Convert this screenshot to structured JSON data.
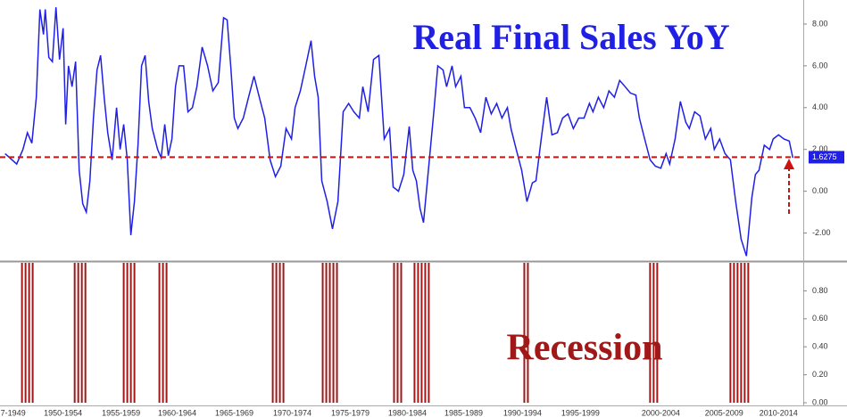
{
  "chart_data": [
    {
      "type": "line",
      "title": "Real Final Sales YoY",
      "x": [
        1947.44,
        1948.45,
        1948.99,
        1949.38,
        1949.77,
        1950.16,
        1950.47,
        1950.78,
        1950.93,
        1951.24,
        1951.55,
        1951.86,
        1952.17,
        1952.48,
        1952.71,
        1952.95,
        1953.26,
        1953.57,
        1953.88,
        1954.19,
        1954.5,
        1954.81,
        1955.12,
        1955.43,
        1955.74,
        1956.05,
        1956.36,
        1956.74,
        1957.13,
        1957.44,
        1957.75,
        1958.06,
        1958.37,
        1958.68,
        1958.99,
        1959.3,
        1959.61,
        1959.92,
        1960.23,
        1960.7,
        1961.01,
        1961.32,
        1961.63,
        1961.94,
        1962.25,
        1962.56,
        1962.95,
        1963.33,
        1963.72,
        1964.11,
        1964.57,
        1965.04,
        1965.5,
        1965.97,
        1966.43,
        1966.74,
        1967.05,
        1967.36,
        1967.67,
        1968.14,
        1968.6,
        1969.07,
        1969.53,
        1970.0,
        1970.47,
        1970.93,
        1971.4,
        1971.86,
        1972.33,
        1972.64,
        1973.1,
        1973.57,
        1974.03,
        1974.34,
        1974.65,
        1974.96,
        1975.43,
        1975.89,
        1976.36,
        1976.82,
        1977.29,
        1977.75,
        1978.22,
        1978.53,
        1978.99,
        1979.46,
        1979.92,
        1980.39,
        1980.85,
        1981.16,
        1981.63,
        1982.09,
        1982.56,
        1982.87,
        1983.18,
        1983.49,
        1983.8,
        1984.26,
        1984.73,
        1985.04,
        1985.5,
        1985.81,
        1986.28,
        1986.59,
        1987.05,
        1987.36,
        1987.83,
        1988.29,
        1988.76,
        1989.22,
        1989.69,
        1990.16,
        1990.62,
        1991.09,
        1991.4,
        1991.86,
        1992.33,
        1992.79,
        1993.26,
        1993.57,
        1994.03,
        1994.5,
        1994.96,
        1995.43,
        1995.89,
        1996.36,
        1996.82,
        1997.29,
        1997.75,
        1998.22,
        1998.53,
        1998.99,
        1999.46,
        1999.92,
        2000.39,
        2000.85,
        2001.32,
        2001.78,
        2002.25,
        2002.56,
        2003.02,
        2003.49,
        2003.95,
        2004.42,
        2004.88,
        2005.19,
        2005.66,
        2006.12,
        2006.59,
        2006.9,
        2007.36,
        2007.83,
        2008.29,
        2008.76,
        2009.07,
        2009.53,
        2010.0,
        2010.47,
        2010.93,
        2011.4,
        2011.86,
        2012.33,
        2012.64,
        2012.95,
        2013.41,
        2013.88,
        2014.19,
        2014.65,
        2015.12,
        2015.58,
        2015.89
      ],
      "series": [
        {
          "color": "#1f1fe6",
          "values": [
            1.8,
            1.3,
            2.0,
            2.8,
            2.3,
            4.5,
            8.7,
            7.5,
            8.7,
            6.4,
            6.2,
            8.8,
            6.3,
            7.8,
            3.2,
            6.0,
            5.0,
            6.2,
            1.0,
            -0.6,
            -1.0,
            0.5,
            3.5,
            5.8,
            6.5,
            4.5,
            2.8,
            1.5,
            4.0,
            2.0,
            3.2,
            1.5,
            -2.1,
            -0.5,
            2.2,
            6.0,
            6.5,
            4.3,
            3.0,
            2.0,
            1.6,
            3.2,
            1.7,
            2.5,
            5.0,
            6.0,
            6.0,
            3.8,
            4.0,
            5.0,
            6.9,
            6.0,
            4.8,
            5.2,
            8.3,
            8.2,
            6.0,
            3.5,
            3.0,
            3.5,
            4.5,
            5.5,
            4.5,
            3.5,
            1.5,
            0.7,
            1.2,
            3.0,
            2.5,
            4.0,
            4.8,
            6.0,
            7.2,
            5.5,
            4.5,
            0.5,
            -0.5,
            -1.8,
            -0.5,
            3.8,
            4.2,
            3.8,
            3.5,
            5.0,
            3.8,
            6.3,
            6.5,
            2.5,
            3.0,
            0.2,
            0.0,
            0.8,
            3.1,
            1.0,
            0.5,
            -0.8,
            -1.5,
            1.2,
            4.0,
            6.0,
            5.8,
            5.0,
            6.0,
            5.0,
            5.5,
            4.0,
            4.0,
            3.5,
            2.8,
            4.5,
            3.7,
            4.2,
            3.5,
            4.0,
            3.0,
            2.0,
            1.0,
            -0.5,
            0.4,
            0.5,
            2.5,
            4.5,
            2.7,
            2.8,
            3.5,
            3.7,
            3.0,
            3.5,
            3.5,
            4.2,
            3.8,
            4.5,
            4.0,
            4.8,
            4.5,
            5.3,
            5.0,
            4.7,
            4.6,
            3.5,
            2.5,
            1.5,
            1.2,
            1.1,
            1.8,
            1.3,
            2.5,
            4.3,
            3.3,
            3.0,
            3.8,
            3.6,
            2.5,
            3.0,
            2.0,
            2.5,
            1.8,
            1.5,
            -0.5,
            -2.3,
            -3.1,
            -0.3,
            0.8,
            1.0,
            2.2,
            2.0,
            2.5,
            2.7,
            2.5,
            2.4,
            1.6
          ]
        }
      ],
      "xlim": [
        1947,
        2016.8
      ],
      "ylim": [
        -3.3,
        9.15
      ],
      "yticks": [
        {
          "value": -2,
          "label": "-2.00"
        },
        {
          "value": 0,
          "label": "0.00"
        },
        {
          "value": 2,
          "label": "2.00"
        },
        {
          "value": 4,
          "label": "4.00"
        },
        {
          "value": 6,
          "label": "6.00"
        },
        {
          "value": 8,
          "label": "8.00"
        }
      ],
      "hline": 1.6275,
      "hline_color": "#cc1111"
    },
    {
      "type": "bar",
      "title": "Recession",
      "x": [
        1948.91,
        1949.22,
        1949.53,
        1949.84,
        1953.49,
        1953.8,
        1954.11,
        1954.42,
        1957.75,
        1958.06,
        1958.37,
        1958.68,
        1960.85,
        1961.16,
        1961.47,
        1970.7,
        1971.01,
        1971.32,
        1971.63,
        1975.04,
        1975.35,
        1975.66,
        1975.97,
        1976.28,
        1981.24,
        1981.55,
        1981.86,
        1983.02,
        1983.33,
        1983.64,
        1983.95,
        1984.26,
        1992.56,
        1992.87,
        2003.49,
        2003.8,
        2004.11,
        2010.47,
        2010.78,
        2011.09,
        2011.4,
        2011.71,
        2012.02
      ],
      "values": [
        1,
        1,
        1,
        1,
        1,
        1,
        1,
        1,
        1,
        1,
        1,
        1,
        1,
        1,
        1,
        1,
        1,
        1,
        1,
        1,
        1,
        1,
        1,
        1,
        1,
        1,
        1,
        1,
        1,
        1,
        1,
        1,
        1,
        1,
        1,
        1,
        1,
        1,
        1,
        1,
        1,
        1,
        1
      ],
      "color": "#a01818",
      "xlim": [
        1947,
        2016.8
      ],
      "ylim": [
        0,
        1
      ],
      "yticks": [
        {
          "value": 0,
          "label": "0.00"
        },
        {
          "value": 0.2,
          "label": "0.20"
        },
        {
          "value": 0.4,
          "label": "0.40"
        },
        {
          "value": 0.6,
          "label": "0.60"
        },
        {
          "value": 0.8,
          "label": "0.80"
        }
      ],
      "xticks": [
        {
          "value": 1948.14,
          "label": "7-1949"
        },
        {
          "value": 1952.48,
          "label": "1950-1954"
        },
        {
          "value": 1957.52,
          "label": "1955-1959"
        },
        {
          "value": 1962.4,
          "label": "1960-1964"
        },
        {
          "value": 1967.36,
          "label": "1965-1969"
        },
        {
          "value": 1972.4,
          "label": "1970-1974"
        },
        {
          "value": 1977.44,
          "label": "1975-1979"
        },
        {
          "value": 1982.4,
          "label": "1980-1984"
        },
        {
          "value": 1987.29,
          "label": "1985-1989"
        },
        {
          "value": 1992.4,
          "label": "1990-1994"
        },
        {
          "value": 1997.44,
          "label": "1995-1999"
        },
        {
          "value": 2004.42,
          "label": "2000-2004"
        },
        {
          "value": 2009.92,
          "label": "2005-2009"
        },
        {
          "value": 2014.65,
          "label": "2010-2014"
        }
      ]
    }
  ]
}
